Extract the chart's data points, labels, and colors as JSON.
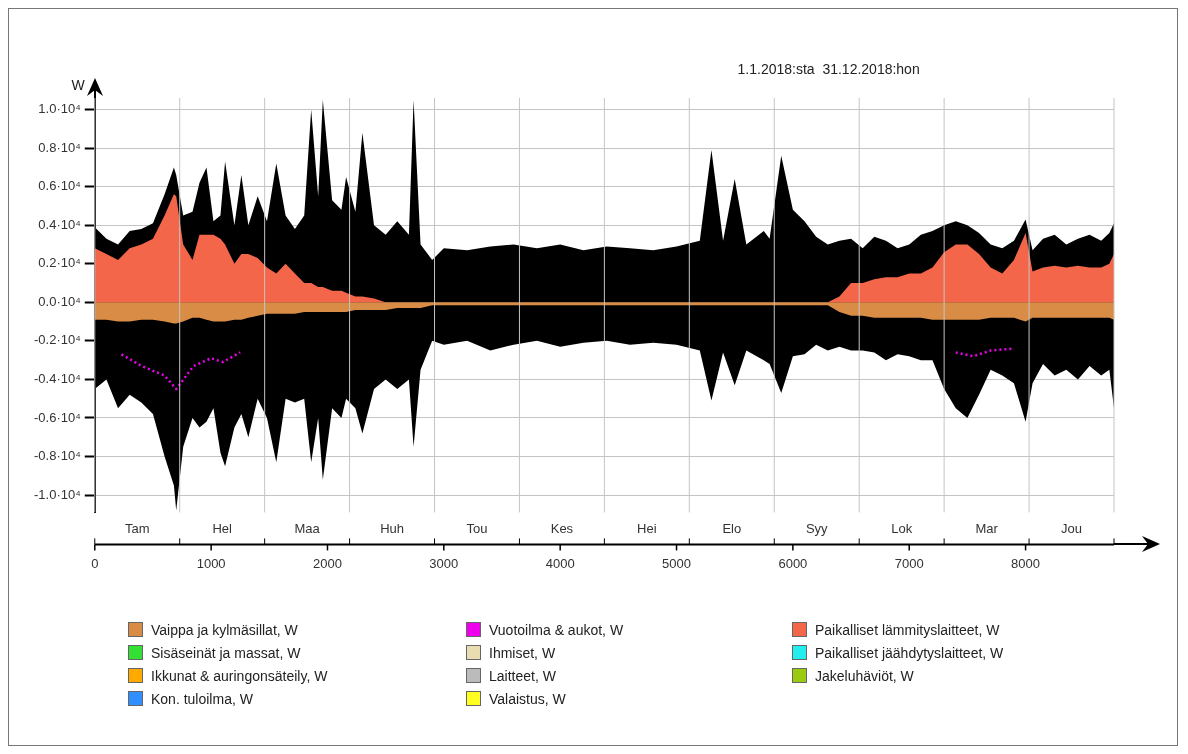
{
  "chart_data": {
    "type": "area",
    "title": "1.1.2018:sta  31.12.2018:hon",
    "ylabel": "W",
    "x": [
      0,
      100,
      200,
      300,
      400,
      500,
      600,
      680,
      700,
      760,
      840,
      900,
      960,
      1020,
      1080,
      1120,
      1200,
      1260,
      1320,
      1400,
      1480,
      1560,
      1640,
      1720,
      1800,
      1860,
      1920,
      1960,
      2040,
      2120,
      2160,
      2240,
      2300,
      2400,
      2500,
      2600,
      2700,
      2740,
      2800,
      2900,
      3000,
      3200,
      3400,
      3600,
      3800,
      4000,
      4200,
      4400,
      4600,
      4800,
      5000,
      5200,
      5300,
      5400,
      5500,
      5600,
      5750,
      5800,
      5900,
      6000,
      6100,
      6200,
      6300,
      6400,
      6500,
      6600,
      6700,
      6800,
      6900,
      7000,
      7100,
      7200,
      7300,
      7400,
      7500,
      7600,
      7700,
      7800,
      7900,
      8000,
      8060,
      8150,
      8250,
      8350,
      8450,
      8550,
      8650,
      8720,
      8760
    ],
    "series": [
      {
        "color": "#000000",
        "values": [
          3900,
          3300,
          3000,
          3700,
          3800,
          4100,
          5600,
          7000,
          6600,
          4500,
          4700,
          6200,
          7000,
          4200,
          4500,
          7300,
          4000,
          6600,
          4000,
          5500,
          4200,
          7200,
          4500,
          3800,
          4500,
          10000,
          5500,
          10500,
          5300,
          4800,
          6500,
          4700,
          8800,
          4000,
          3500,
          4200,
          3500,
          10500,
          3000,
          2200,
          2800,
          2700,
          2900,
          3000,
          2800,
          3000,
          2700,
          2900,
          2800,
          2700,
          2900,
          3200,
          7900,
          3200,
          6400,
          3000,
          3700,
          3300,
          7600,
          4800,
          4200,
          3400,
          3000,
          3200,
          3300,
          2800,
          3400,
          3200,
          2800,
          3000,
          3500,
          3700,
          4000,
          4200,
          4000,
          3600,
          3000,
          2800,
          3200,
          4300,
          2700,
          3300,
          3500,
          3000,
          3300,
          3500,
          3200,
          3600,
          4100
        ]
      },
      {
        "color": "#000000",
        "values": [
          -4500,
          -4000,
          -5500,
          -4800,
          -5200,
          -5800,
          -8000,
          -9500,
          -10800,
          -7500,
          -6000,
          -6500,
          -6200,
          -5500,
          -7800,
          -8500,
          -6500,
          -5800,
          -7000,
          -5000,
          -6000,
          -8300,
          -5000,
          -5200,
          -5000,
          -8300,
          -6000,
          -9200,
          -5500,
          -6000,
          -5000,
          -5500,
          -6800,
          -4500,
          -4000,
          -4500,
          -4000,
          -7500,
          -3500,
          -2000,
          -2200,
          -2000,
          -2500,
          -2200,
          -2000,
          -2300,
          -2100,
          -2000,
          -2200,
          -2100,
          -2200,
          -2500,
          -5100,
          -2600,
          -4300,
          -2500,
          -3000,
          -3200,
          -4700,
          -2800,
          -2700,
          -2200,
          -2500,
          -2300,
          -2500,
          -2500,
          -2600,
          -3000,
          -2700,
          -2800,
          -3000,
          -3000,
          -4500,
          -5500,
          -6000,
          -4800,
          -3500,
          -3800,
          -4200,
          -6200,
          -4200,
          -3200,
          -3800,
          -3500,
          -4000,
          -3300,
          -3800,
          -3500,
          -5500
        ]
      },
      {
        "name": "Vaippa ja kylmäsillat, W",
        "color": "#d98c45",
        "values": [
          -900,
          -900,
          -1000,
          -1000,
          -900,
          -900,
          -1000,
          -1100,
          -1100,
          -1000,
          -800,
          -800,
          -900,
          -1000,
          -1000,
          -1000,
          -900,
          -900,
          -800,
          -700,
          -600,
          -600,
          -600,
          -600,
          -500,
          -500,
          -500,
          -500,
          -500,
          -500,
          -500,
          -400,
          -400,
          -400,
          -400,
          -300,
          -300,
          -300,
          -300,
          -150,
          -150,
          -150,
          -150,
          -150,
          -150,
          -150,
          -150,
          -150,
          -150,
          -150,
          -150,
          -150,
          -150,
          -150,
          -150,
          -150,
          -150,
          -150,
          -150,
          -150,
          -150,
          -150,
          -150,
          -500,
          -700,
          -700,
          -800,
          -800,
          -800,
          -800,
          -800,
          -900,
          -900,
          -900,
          -900,
          -900,
          -800,
          -800,
          -800,
          -1000,
          -800,
          -800,
          -800,
          -800,
          -800,
          -800,
          -800,
          -800,
          -900
        ]
      },
      {
        "name": "Sisäseinät ja massat, W",
        "color": "#33e033",
        "values": [
          null,
          null,
          null,
          null,
          null,
          null,
          null,
          null,
          null,
          null,
          null,
          null,
          null,
          null,
          null,
          null,
          null,
          null,
          null,
          null,
          null,
          null,
          null,
          null,
          null,
          null,
          null,
          null,
          null,
          null,
          null,
          null,
          null,
          null,
          null,
          null,
          null,
          null,
          null,
          null,
          null,
          null,
          null,
          null,
          null,
          null,
          null,
          null,
          null,
          null,
          null,
          null,
          null,
          null,
          null,
          null,
          null,
          null,
          null,
          null,
          null,
          null,
          null,
          null,
          null,
          null,
          null,
          null,
          null,
          null,
          null,
          null,
          null,
          null,
          null,
          null,
          null,
          null,
          null,
          null,
          null,
          null,
          null,
          null,
          null,
          null,
          null,
          null,
          null
        ]
      },
      {
        "name": "Ikkunat & auringonsäteily, W",
        "color": "#ffaa00",
        "values": [
          null,
          null,
          null,
          null,
          null,
          null,
          null,
          null,
          null,
          null,
          null,
          null,
          null,
          null,
          null,
          null,
          null,
          null,
          null,
          null,
          null,
          null,
          null,
          null,
          null,
          null,
          null,
          null,
          null,
          null,
          null,
          null,
          null,
          null,
          null,
          null,
          null,
          null,
          null,
          null,
          null,
          null,
          null,
          null,
          null,
          null,
          null,
          null,
          null,
          null,
          null,
          null,
          null,
          null,
          null,
          null,
          null,
          null,
          null,
          null,
          null,
          null,
          null,
          null,
          null,
          null,
          null,
          null,
          null,
          null,
          null,
          null,
          null,
          null,
          null,
          null,
          null,
          null,
          null,
          null,
          null,
          null,
          null,
          null,
          null,
          null,
          null,
          null,
          null
        ]
      },
      {
        "name": "Kon. tuloilma, W",
        "color": "#2f8fff",
        "values": [
          null,
          null,
          null,
          null,
          null,
          null,
          null,
          null,
          null,
          null,
          null,
          null,
          null,
          null,
          null,
          null,
          null,
          null,
          null,
          null,
          null,
          null,
          null,
          null,
          null,
          null,
          null,
          null,
          null,
          null,
          null,
          null,
          null,
          null,
          null,
          null,
          null,
          null,
          null,
          null,
          null,
          null,
          null,
          null,
          null,
          null,
          null,
          null,
          null,
          null,
          null,
          null,
          null,
          null,
          null,
          null,
          null,
          null,
          null,
          null,
          null,
          null,
          null,
          null,
          null,
          null,
          null,
          null,
          null,
          null,
          null,
          null,
          null,
          null,
          null,
          null,
          null,
          null,
          null,
          null,
          null,
          null,
          null,
          null,
          null,
          null,
          null,
          null,
          null
        ]
      },
      {
        "name": "Vuotoilma & aukot, W",
        "color": "#ee00ee",
        "type": "line",
        "line_style": "dotted",
        "x": [
          230,
          400,
          600,
          700,
          850,
          1000,
          1100,
          1250,
          4000,
          7400,
          7550,
          7700,
          7900
        ],
        "values": [
          -2700,
          -3300,
          -3800,
          -4500,
          -3300,
          -2900,
          -3100,
          -2600,
          null,
          -2600,
          -2800,
          -2500,
          -2400
        ]
      },
      {
        "name": "Ihmiset, W",
        "color": "#e8dcb0",
        "values": [
          null,
          null,
          null,
          null,
          null,
          null,
          null,
          null,
          null,
          null,
          null,
          null,
          null,
          null,
          null,
          null,
          null,
          null,
          null,
          null,
          null,
          null,
          null,
          null,
          null,
          null,
          null,
          null,
          null,
          null,
          null,
          null,
          null,
          null,
          null,
          null,
          null,
          null,
          null,
          null,
          null,
          null,
          null,
          null,
          null,
          null,
          null,
          null,
          null,
          null,
          null,
          null,
          null,
          null,
          null,
          null,
          null,
          null,
          null,
          null,
          null,
          null,
          null,
          null,
          null,
          null,
          null,
          null,
          null,
          null,
          null,
          null,
          null,
          null,
          null,
          null,
          null,
          null,
          null,
          null,
          null,
          null,
          null,
          null,
          null,
          null,
          null,
          null,
          null
        ]
      },
      {
        "name": "Laitteet, W",
        "color": "#bbbbbb",
        "values": [
          null,
          null,
          null,
          null,
          null,
          null,
          null,
          null,
          null,
          null,
          null,
          null,
          null,
          null,
          null,
          null,
          null,
          null,
          null,
          null,
          null,
          null,
          null,
          null,
          null,
          null,
          null,
          null,
          null,
          null,
          null,
          null,
          null,
          null,
          null,
          null,
          null,
          null,
          null,
          null,
          null,
          null,
          null,
          null,
          null,
          null,
          null,
          null,
          null,
          null,
          null,
          null,
          null,
          null,
          null,
          null,
          null,
          null,
          null,
          null,
          null,
          null,
          null,
          null,
          null,
          null,
          null,
          null,
          null,
          null,
          null,
          null,
          null,
          null,
          null,
          null,
          null,
          null,
          null,
          null,
          null,
          null,
          null,
          null,
          null,
          null,
          null,
          null,
          null
        ]
      },
      {
        "name": "Valaistus, W",
        "color": "#ffff22",
        "values": [
          null,
          null,
          null,
          null,
          null,
          null,
          null,
          null,
          null,
          null,
          null,
          null,
          null,
          null,
          null,
          null,
          null,
          null,
          null,
          null,
          null,
          null,
          null,
          null,
          null,
          null,
          null,
          null,
          null,
          null,
          null,
          null,
          null,
          null,
          null,
          null,
          null,
          null,
          null,
          null,
          null,
          null,
          null,
          null,
          null,
          null,
          null,
          null,
          null,
          null,
          null,
          null,
          null,
          null,
          null,
          null,
          null,
          null,
          null,
          null,
          null,
          null,
          null,
          null,
          null,
          null,
          null,
          null,
          null,
          null,
          null,
          null,
          null,
          null,
          null,
          null,
          null,
          null,
          null,
          null,
          null,
          null,
          null,
          null,
          null,
          null,
          null,
          null,
          null
        ]
      },
      {
        "name": "Paikalliset lämmityslaitteet, W",
        "color": "#f4664a",
        "values": [
          2800,
          2500,
          2200,
          2800,
          3000,
          3300,
          4500,
          5600,
          5500,
          3000,
          2200,
          3500,
          3500,
          3500,
          3300,
          3000,
          2000,
          2500,
          2500,
          2300,
          1800,
          1500,
          2000,
          1500,
          1000,
          1000,
          800,
          800,
          600,
          600,
          500,
          300,
          300,
          200,
          0,
          0,
          0,
          0,
          0,
          0,
          0,
          0,
          0,
          0,
          0,
          0,
          0,
          0,
          0,
          0,
          0,
          0,
          0,
          0,
          0,
          0,
          0,
          0,
          0,
          0,
          0,
          0,
          0,
          300,
          1000,
          1000,
          1200,
          1300,
          1300,
          1500,
          1500,
          1800,
          2600,
          3000,
          3000,
          2500,
          1800,
          1500,
          2200,
          3600,
          1600,
          1800,
          1900,
          1800,
          1900,
          1800,
          1800,
          2000,
          2500
        ]
      },
      {
        "name": "Paikalliset jäähdytyslaitteet, W",
        "color": "#22eeee",
        "values": [
          null,
          null,
          null,
          null,
          null,
          null,
          null,
          null,
          null,
          null,
          null,
          null,
          null,
          null,
          null,
          null,
          null,
          null,
          null,
          null,
          null,
          null,
          null,
          null,
          null,
          null,
          null,
          null,
          null,
          null,
          null,
          null,
          null,
          null,
          null,
          null,
          null,
          null,
          null,
          null,
          null,
          null,
          null,
          null,
          null,
          null,
          null,
          null,
          null,
          null,
          null,
          null,
          null,
          null,
          null,
          null,
          null,
          null,
          null,
          null,
          null,
          null,
          null,
          null,
          null,
          null,
          null,
          null,
          null,
          null,
          null,
          null,
          null,
          null,
          null,
          null,
          null,
          null,
          null,
          null,
          null,
          null,
          null,
          null,
          null,
          null,
          null,
          null,
          null
        ]
      },
      {
        "name": "Jakeluhäviöt, W",
        "color": "#99cc11",
        "values": [
          null,
          null,
          null,
          null,
          null,
          null,
          null,
          null,
          null,
          null,
          null,
          null,
          null,
          null,
          null,
          null,
          null,
          null,
          null,
          null,
          null,
          null,
          null,
          null,
          null,
          null,
          null,
          null,
          null,
          null,
          null,
          null,
          null,
          null,
          null,
          null,
          null,
          null,
          null,
          null,
          null,
          null,
          null,
          null,
          null,
          null,
          null,
          null,
          null,
          null,
          null,
          null,
          null,
          null,
          null,
          null,
          null,
          null,
          null,
          null,
          null,
          null,
          null,
          null,
          null,
          null,
          null,
          null,
          null,
          null,
          null,
          null,
          null,
          null,
          null,
          null,
          null,
          null,
          null,
          null,
          null,
          null,
          null,
          null,
          null,
          null,
          null,
          null,
          null
        ]
      }
    ],
    "xlim": [
      0,
      8760
    ],
    "xticks": [
      0,
      1000,
      2000,
      3000,
      4000,
      5000,
      6000,
      7000,
      8000
    ],
    "annotations": [
      "Tam",
      "Hel",
      "Maa",
      "Huh",
      "Tou",
      "Kes",
      "Hei",
      "Elo",
      "Syy",
      "Lok",
      "Mar",
      "Jou"
    ],
    "ylim": [
      -10900,
      10600
    ],
    "yticks": [
      {
        "value": -10000,
        "label": "-1.0·10⁴"
      },
      {
        "value": -8000,
        "label": "-0.8·10⁴"
      },
      {
        "value": -6000,
        "label": "-0.6·10⁴"
      },
      {
        "value": -4000,
        "label": "-0.4·10⁴"
      },
      {
        "value": -2000,
        "label": "-0.2·10⁴"
      },
      {
        "value": 0,
        "label": "0.0·10⁴"
      },
      {
        "value": 2000,
        "label": "0.2·10⁴"
      },
      {
        "value": 4000,
        "label": "0.4·10⁴"
      },
      {
        "value": 6000,
        "label": "0.6·10⁴"
      },
      {
        "value": 8000,
        "label": "0.8·10⁴"
      },
      {
        "value": 10000,
        "label": "1.0·10⁴"
      }
    ],
    "grid": true,
    "legend": "bottom",
    "marker": "none"
  }
}
